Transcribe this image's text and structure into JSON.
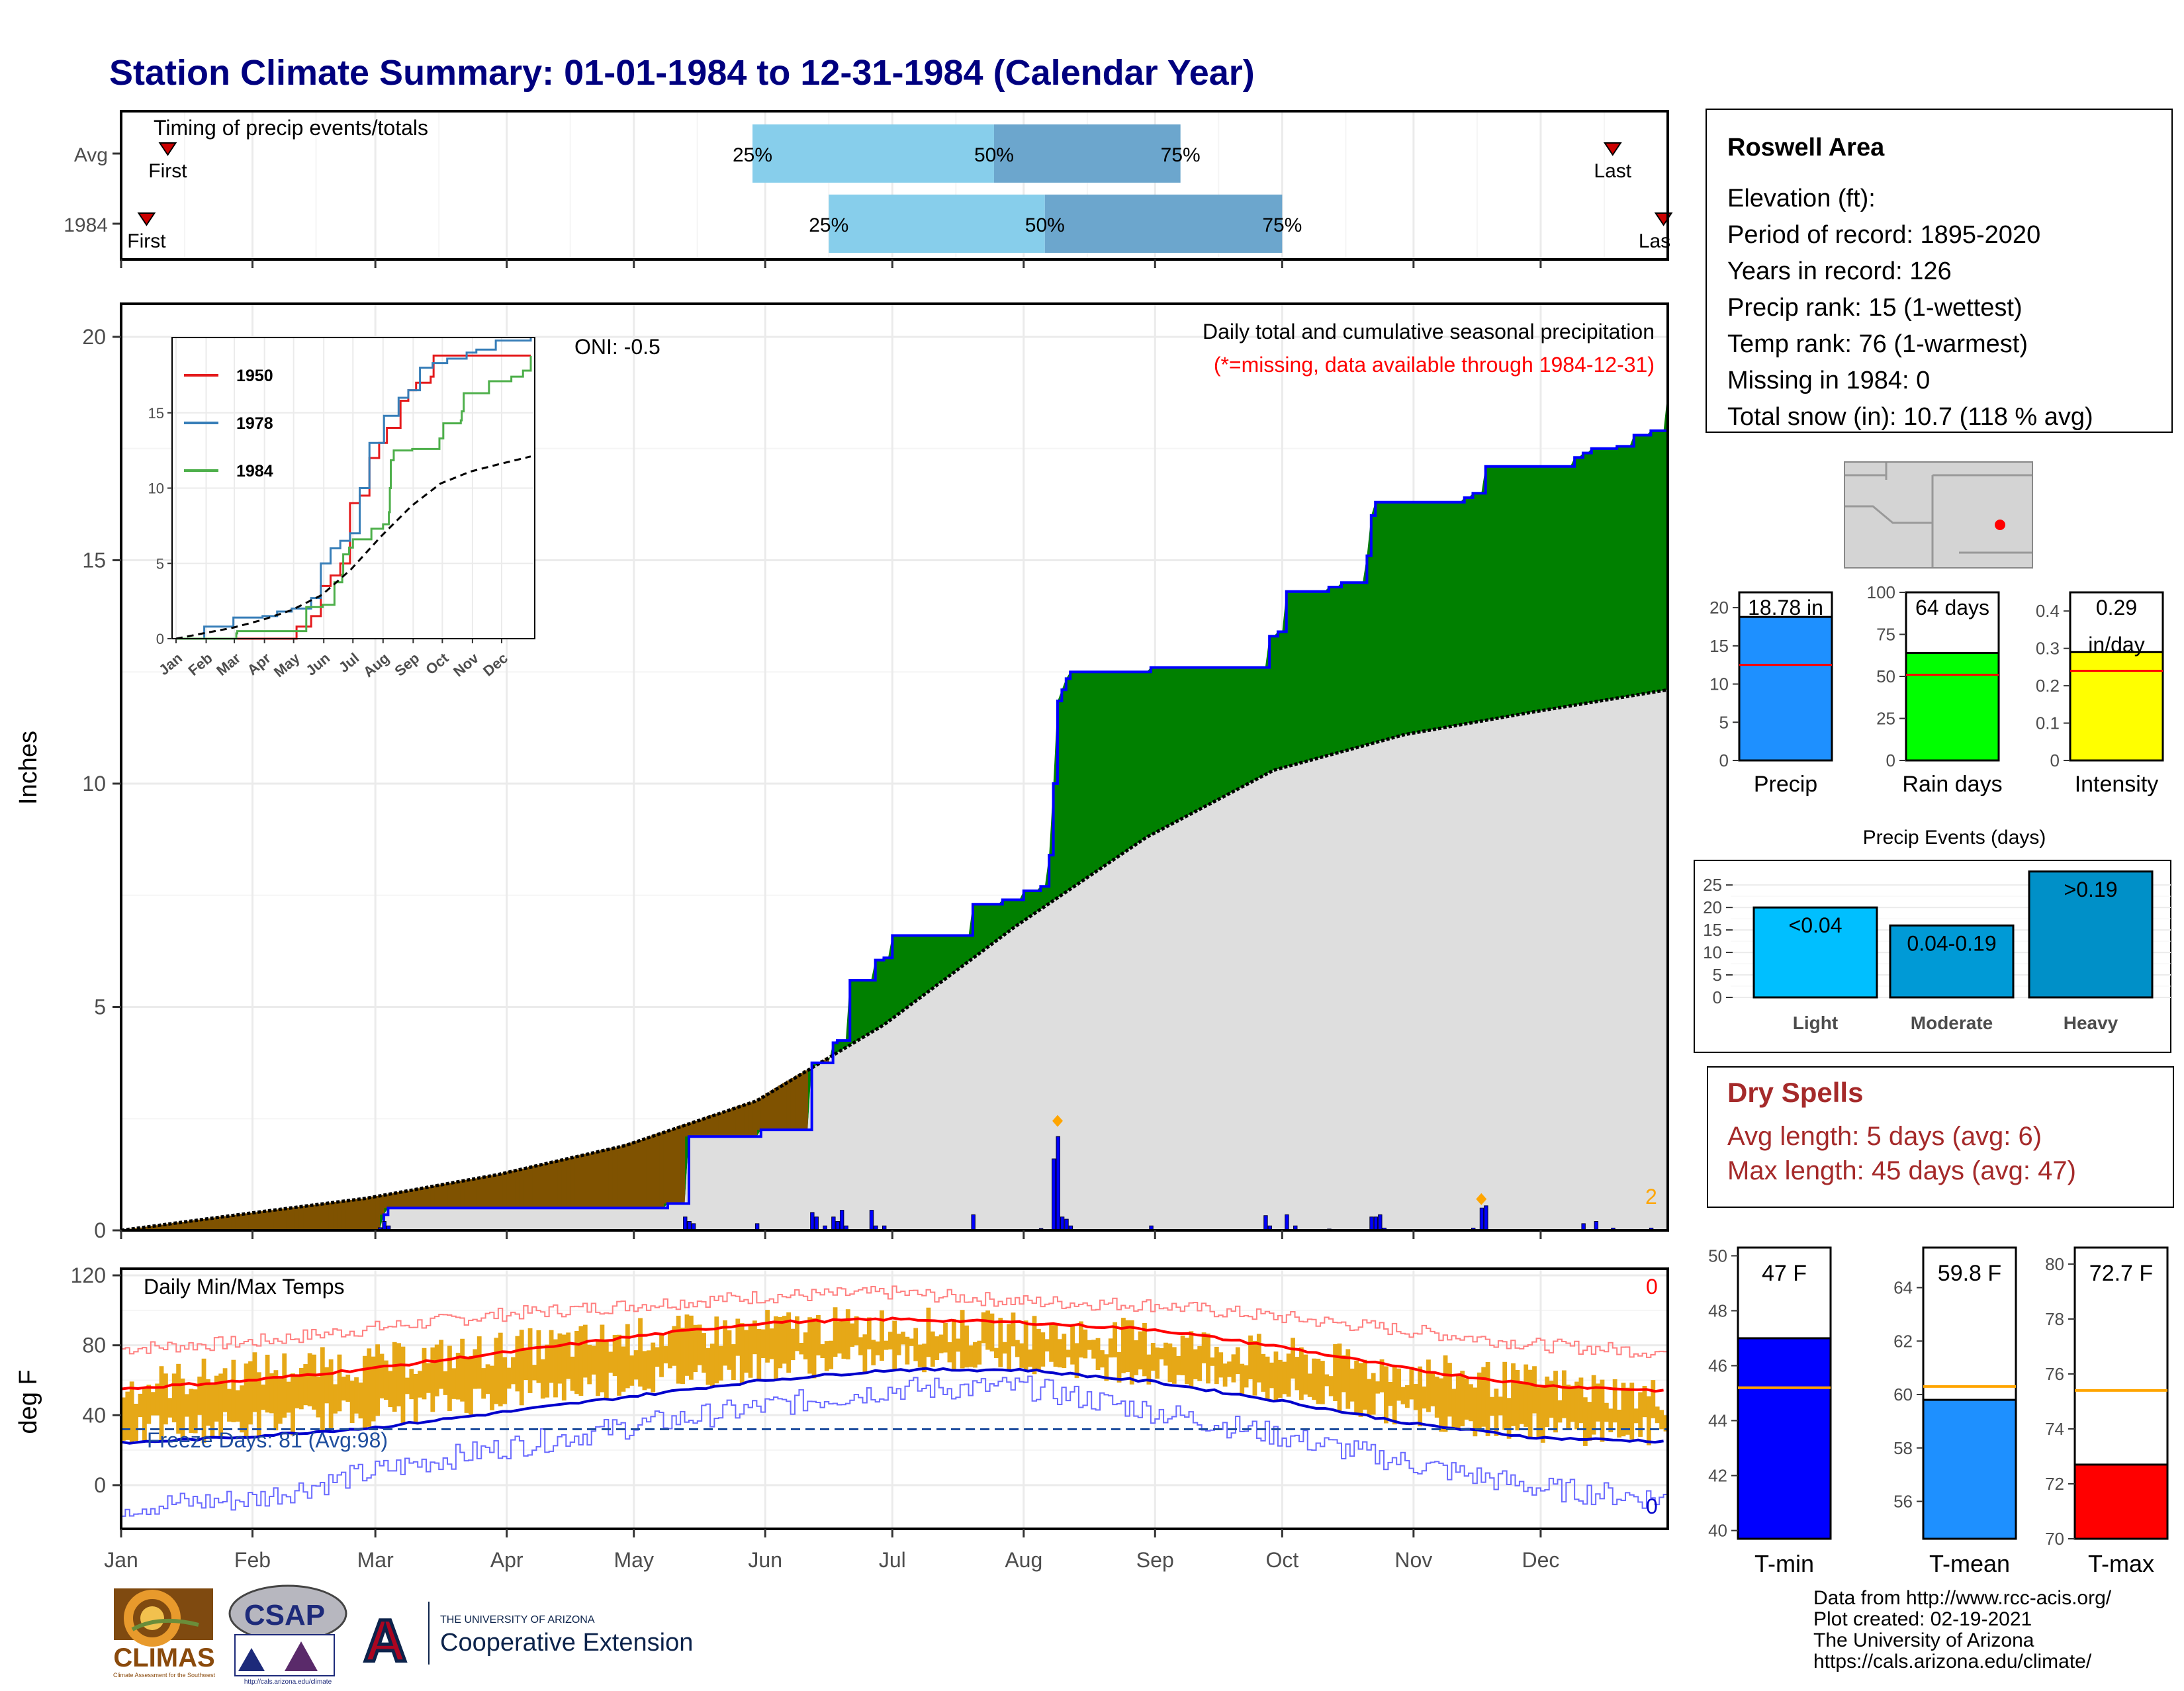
{
  "page": {
    "title": "Station Climate Summary: 01-01-1984 to 12-31-1984 (Calendar Year)",
    "credits": [
      "Data from http://www.rcc-acis.org/",
      "Plot created: 02-19-2021",
      "The University of Arizona",
      "https://cals.arizona.edu/climate/"
    ]
  },
  "colors": {
    "title": "#00007f",
    "green": "#008000",
    "brown": "#7f5200",
    "blue": "#0000ff",
    "grey": "#dedede",
    "gold": "#e6a817",
    "red": "#ff0000",
    "dryspell": "#a52a2a"
  },
  "logos": {
    "climas_text": "CLIMAS",
    "climas_sub": "Climate Assessment for the Southwest",
    "csap_text": "CSAP",
    "csap_url": "http://cals.arizona.edu/climate",
    "ua_small": "THE UNIVERSITY OF ARIZONA",
    "ua_large": "Cooperative Extension",
    "ua_letter": "A"
  },
  "timing": {
    "title": "Timing of precip events/totals",
    "rows": [
      {
        "label": "Avg",
        "first_doy": 12,
        "last_doy": 353,
        "q25": 150,
        "q50": 207,
        "q75": 251,
        "first_label": "First",
        "last_label": "Last"
      },
      {
        "label": "1984",
        "first_doy": 7,
        "last_doy": 365,
        "q25": 168,
        "q50": 219,
        "q75": 275,
        "first_label": "First",
        "last_label": "Las"
      }
    ],
    "q_labels": [
      "25%",
      "50%",
      "75%"
    ]
  },
  "months": [
    "Jan",
    "Feb",
    "Mar",
    "Apr",
    "May",
    "Jun",
    "Jul",
    "Aug",
    "Sep",
    "Oct",
    "Nov",
    "Dec"
  ],
  "month_start_doy": [
    1,
    32,
    61,
    92,
    122,
    153,
    183,
    214,
    245,
    275,
    306,
    336
  ],
  "precip": {
    "ylabel": "Inches",
    "ylim": [
      0,
      20
    ],
    "yticks": [
      0,
      5,
      10,
      15,
      20
    ],
    "header1": "Daily total and cumulative seasonal precipitation",
    "header2": "(*=missing, data available through 1984-12-31)",
    "oni": "ONI: -0.5",
    "corner_count": "2",
    "cumulative_1984": [
      [
        1,
        0
      ],
      [
        63,
        0.35
      ],
      [
        64,
        0.5
      ],
      [
        128,
        0.5
      ],
      [
        130,
        0.6
      ],
      [
        133,
        0.6
      ],
      [
        135,
        2.1
      ],
      [
        150,
        2.1
      ],
      [
        152,
        2.25
      ],
      [
        163,
        2.25
      ],
      [
        164,
        3.75
      ],
      [
        168,
        3.75
      ],
      [
        169,
        4.2
      ],
      [
        170,
        4.25
      ],
      [
        172,
        4.25
      ],
      [
        173,
        5.6
      ],
      [
        178,
        5.6
      ],
      [
        179,
        6.05
      ],
      [
        181,
        6.1
      ],
      [
        183,
        6.6
      ],
      [
        200,
        6.6
      ],
      [
        202,
        7.3
      ],
      [
        209,
        7.4
      ],
      [
        214,
        7.6
      ],
      [
        218,
        7.7
      ],
      [
        220,
        8.4
      ],
      [
        221,
        10.0
      ],
      [
        222,
        11.85
      ],
      [
        223,
        12.1
      ],
      [
        224,
        12.35
      ],
      [
        225,
        12.5
      ],
      [
        243,
        12.5
      ],
      [
        244,
        12.6
      ],
      [
        271,
        12.6
      ],
      [
        272,
        13.3
      ],
      [
        274,
        13.4
      ],
      [
        276,
        14.3
      ],
      [
        286,
        14.4
      ],
      [
        289,
        14.5
      ],
      [
        294,
        14.5
      ],
      [
        295,
        15.1
      ],
      [
        296,
        16.0
      ],
      [
        297,
        16.3
      ],
      [
        316,
        16.3
      ],
      [
        318,
        16.4
      ],
      [
        320,
        16.5
      ],
      [
        322,
        16.5
      ],
      [
        323,
        17.1
      ],
      [
        344,
        17.3
      ],
      [
        346,
        17.4
      ],
      [
        348,
        17.5
      ],
      [
        354,
        17.55
      ],
      [
        358,
        17.8
      ],
      [
        362,
        17.9
      ],
      [
        366,
        18.78
      ]
    ],
    "average_cumulative": [
      [
        1,
        0
      ],
      [
        31,
        0.38
      ],
      [
        59,
        0.72
      ],
      [
        90,
        1.25
      ],
      [
        120,
        1.9
      ],
      [
        151,
        2.9
      ],
      [
        181,
        4.6
      ],
      [
        212,
        6.8
      ],
      [
        243,
        8.8
      ],
      [
        273,
        10.3
      ],
      [
        304,
        11.1
      ],
      [
        334,
        11.6
      ],
      [
        366,
        12.1
      ]
    ],
    "daily": [
      [
        62,
        0.06
      ],
      [
        63,
        0.2
      ],
      [
        64,
        0.1
      ],
      [
        134,
        0.3
      ],
      [
        135,
        0.2
      ],
      [
        136,
        0.15
      ],
      [
        151,
        0.15
      ],
      [
        164,
        0.4
      ],
      [
        165,
        0.3
      ],
      [
        167,
        0.1
      ],
      [
        169,
        0.3
      ],
      [
        170,
        0.2
      ],
      [
        171,
        0.45
      ],
      [
        172,
        0.1
      ],
      [
        178,
        0.45
      ],
      [
        179,
        0.1
      ],
      [
        181,
        0.1
      ],
      [
        202,
        0.35
      ],
      [
        218,
        0.04
      ],
      [
        221,
        1.6
      ],
      [
        222,
        2.1
      ],
      [
        223,
        0.3
      ],
      [
        224,
        0.25
      ],
      [
        225,
        0.1
      ],
      [
        244,
        0.1
      ],
      [
        271,
        0.33
      ],
      [
        272,
        0.1
      ],
      [
        276,
        0.35
      ],
      [
        278,
        0.1
      ],
      [
        286,
        0.03
      ],
      [
        296,
        0.3
      ],
      [
        297,
        0.3
      ],
      [
        298,
        0.35
      ],
      [
        299,
        0.05
      ],
      [
        320,
        0.05
      ],
      [
        322,
        0.5
      ],
      [
        323,
        0.55
      ],
      [
        346,
        0.15
      ],
      [
        349,
        0.2
      ],
      [
        353,
        0.05
      ],
      [
        362,
        0.05
      ]
    ],
    "markers": [
      {
        "doy": 222,
        "value": 2.45
      },
      {
        "doy": 322,
        "value": 0.7
      }
    ],
    "inset": {
      "ylim": [
        0,
        20
      ],
      "yticks": [
        0,
        5,
        10,
        15
      ],
      "legend": [
        "1950",
        "1978",
        "1984"
      ],
      "series": [
        {
          "name": "1950",
          "color": "#e41a1c",
          "points": [
            [
              1,
              0
            ],
            [
              120,
              0
            ],
            [
              125,
              0.8
            ],
            [
              140,
              1.5
            ],
            [
              150,
              3.5
            ],
            [
              160,
              4.2
            ],
            [
              170,
              5
            ],
            [
              180,
              9
            ],
            [
              190,
              9.5
            ],
            [
              200,
              12
            ],
            [
              210,
              13
            ],
            [
              218,
              14
            ],
            [
              225,
              14
            ],
            [
              232,
              15.8
            ],
            [
              240,
              16.5
            ],
            [
              248,
              17
            ],
            [
              256,
              17
            ],
            [
              263,
              17.4
            ],
            [
              266,
              18.8
            ],
            [
              300,
              18.8
            ],
            [
              366,
              18.8
            ]
          ]
        },
        {
          "name": "1978",
          "color": "#377eb8",
          "points": [
            [
              1,
              0
            ],
            [
              30,
              0.8
            ],
            [
              60,
              1.4
            ],
            [
              90,
              1.5
            ],
            [
              105,
              1.8
            ],
            [
              120,
              2
            ],
            [
              140,
              2.7
            ],
            [
              150,
              5
            ],
            [
              160,
              6
            ],
            [
              170,
              6.5
            ],
            [
              180,
              7
            ],
            [
              190,
              10
            ],
            [
              200,
              13
            ],
            [
              215,
              14.8
            ],
            [
              222,
              14.8
            ],
            [
              230,
              16
            ],
            [
              240,
              16.5
            ],
            [
              252,
              18
            ],
            [
              265,
              18.3
            ],
            [
              280,
              18.6
            ],
            [
              300,
              19
            ],
            [
              310,
              19.2
            ],
            [
              330,
              19.8
            ],
            [
              366,
              20
            ]
          ]
        },
        {
          "name": "1984",
          "color": "#4daf4a",
          "points": [
            [
              1,
              0
            ],
            [
              63,
              0.35
            ],
            [
              64,
              0.5
            ],
            [
              128,
              0.5
            ],
            [
              135,
              2.1
            ],
            [
              150,
              2.1
            ],
            [
              152,
              2.25
            ],
            [
              163,
              2.25
            ],
            [
              164,
              3.75
            ],
            [
              172,
              4.25
            ],
            [
              173,
              5.6
            ],
            [
              179,
              6.05
            ],
            [
              183,
              6.6
            ],
            [
              200,
              6.6
            ],
            [
              202,
              7.3
            ],
            [
              214,
              7.6
            ],
            [
              220,
              8.4
            ],
            [
              221,
              10
            ],
            [
              222,
              11.85
            ],
            [
              225,
              12.5
            ],
            [
              243,
              12.5
            ],
            [
              244,
              12.6
            ],
            [
              271,
              12.6
            ],
            [
              272,
              13.3
            ],
            [
              276,
              14.3
            ],
            [
              294,
              14.5
            ],
            [
              295,
              15.1
            ],
            [
              297,
              16.3
            ],
            [
              316,
              16.3
            ],
            [
              323,
              17.1
            ],
            [
              346,
              17.4
            ],
            [
              358,
              17.8
            ],
            [
              366,
              18.78
            ]
          ]
        }
      ],
      "avg_points": [
        [
          1,
          0
        ],
        [
          31,
          0.38
        ],
        [
          59,
          0.72
        ],
        [
          90,
          1.25
        ],
        [
          120,
          1.9
        ],
        [
          151,
          2.9
        ],
        [
          181,
          4.6
        ],
        [
          212,
          6.8
        ],
        [
          243,
          8.8
        ],
        [
          273,
          10.3
        ],
        [
          304,
          11.1
        ],
        [
          334,
          11.6
        ],
        [
          366,
          12.1
        ]
      ]
    }
  },
  "temps": {
    "ylabel": "deg F",
    "ylim": [
      -25,
      120
    ],
    "yticks": [
      0,
      40,
      80,
      120
    ],
    "title": "Daily Min/Max Temps",
    "freeze_text": "Freeze Days: 81 (Avg:98)",
    "freeze_line": 32,
    "count_top": "0",
    "count_bottom": "0",
    "normal_max": [
      [
        1,
        55
      ],
      [
        32,
        60
      ],
      [
        61,
        67
      ],
      [
        92,
        76
      ],
      [
        122,
        85
      ],
      [
        153,
        93
      ],
      [
        183,
        95
      ],
      [
        214,
        93
      ],
      [
        245,
        89
      ],
      [
        275,
        79
      ],
      [
        306,
        66
      ],
      [
        336,
        57
      ],
      [
        366,
        54
      ]
    ],
    "normal_min": [
      [
        1,
        24
      ],
      [
        32,
        28
      ],
      [
        61,
        33
      ],
      [
        92,
        42
      ],
      [
        122,
        51
      ],
      [
        153,
        60
      ],
      [
        183,
        66
      ],
      [
        214,
        66
      ],
      [
        245,
        59
      ],
      [
        275,
        48
      ],
      [
        306,
        35
      ],
      [
        336,
        27
      ],
      [
        366,
        25
      ]
    ],
    "record_max": [
      [
        1,
        78
      ],
      [
        32,
        82
      ],
      [
        61,
        90
      ],
      [
        92,
        98
      ],
      [
        122,
        103
      ],
      [
        153,
        108
      ],
      [
        183,
        110
      ],
      [
        214,
        105
      ],
      [
        245,
        103
      ],
      [
        275,
        96
      ],
      [
        306,
        88
      ],
      [
        336,
        80
      ],
      [
        366,
        76
      ]
    ],
    "record_min": [
      [
        1,
        -12
      ],
      [
        32,
        -8
      ],
      [
        61,
        8
      ],
      [
        92,
        22
      ],
      [
        122,
        34
      ],
      [
        153,
        45
      ],
      [
        183,
        55
      ],
      [
        214,
        56
      ],
      [
        245,
        42
      ],
      [
        275,
        28
      ],
      [
        306,
        12
      ],
      [
        336,
        -2
      ],
      [
        366,
        -8
      ]
    ],
    "obs_max": [
      [
        1,
        56
      ],
      [
        32,
        66
      ],
      [
        61,
        70
      ],
      [
        92,
        78
      ],
      [
        122,
        85
      ],
      [
        153,
        90
      ],
      [
        183,
        92
      ],
      [
        214,
        88
      ],
      [
        245,
        84
      ],
      [
        275,
        74
      ],
      [
        306,
        65
      ],
      [
        336,
        58
      ],
      [
        366,
        50
      ]
    ],
    "obs_min": [
      [
        1,
        22
      ],
      [
        32,
        27
      ],
      [
        61,
        34
      ],
      [
        92,
        44
      ],
      [
        122,
        52
      ],
      [
        153,
        60
      ],
      [
        183,
        65
      ],
      [
        214,
        65
      ],
      [
        245,
        57
      ],
      [
        275,
        46
      ],
      [
        306,
        33
      ],
      [
        336,
        24
      ],
      [
        366,
        22
      ]
    ]
  },
  "station": {
    "name": "Roswell Area",
    "lines": [
      "Elevation (ft):",
      "Period of record: 1895-2020",
      "Years in record: 126",
      "Precip rank: 15 (1-wettest)",
      "Temp rank: 76 (1-warmest)",
      "Missing in 1984: 0",
      "Total snow (in): 10.7 (118 % avg)"
    ]
  },
  "summary_bars": [
    {
      "label": "Precip",
      "value": 18.78,
      "avg": 12.5,
      "ylim": [
        0,
        22
      ],
      "yticks": [
        0,
        5,
        10,
        15,
        20
      ],
      "color": "#1e90ff",
      "value_text": "18.78 in",
      "value_text2": ""
    },
    {
      "label": "Rain days",
      "value": 64,
      "avg": 51,
      "ylim": [
        0,
        100
      ],
      "yticks": [
        0,
        25,
        50,
        75,
        100
      ],
      "color": "#00ff00",
      "value_text": "64 days",
      "value_text2": ""
    },
    {
      "label": "Intensity",
      "value": 0.29,
      "avg": 0.24,
      "ylim": [
        0,
        0.45
      ],
      "yticks": [
        0.0,
        0.1,
        0.2,
        0.3,
        0.4
      ],
      "color": "#ffff00",
      "value_text": "0.29",
      "value_text2": "in/day"
    }
  ],
  "precip_events": {
    "title": "Precip Events (days)",
    "categories": [
      "Light",
      "Moderate",
      "Heavy"
    ],
    "values": [
      20,
      16,
      28
    ],
    "labels": [
      "<0.04",
      "0.04-0.19",
      ">0.19"
    ],
    "colors": [
      "#00bfff",
      "#009ad6",
      "#0090c8"
    ],
    "ylim": [
      0,
      29
    ],
    "yticks": [
      0,
      5,
      10,
      15,
      20,
      25
    ]
  },
  "dry_spells": {
    "title": "Dry Spells",
    "avg_line": "Avg length: 5 days (avg: 6)",
    "max_line": "Max length: 45 days (avg: 47)"
  },
  "temp_bars": [
    {
      "label": "T-min",
      "value": 47.0,
      "avg": 45.2,
      "ylim": [
        39.7,
        50.3
      ],
      "yticks": [
        40,
        42,
        44,
        46,
        48,
        50
      ],
      "color": "#0000ff",
      "value_text": "47 F"
    },
    {
      "label": "T-mean",
      "value": 59.8,
      "avg": 60.3,
      "ylim": [
        54.6,
        65.5
      ],
      "yticks": [
        56,
        58,
        60,
        62,
        64
      ],
      "color": "#1e90ff",
      "value_text": "59.8 F"
    },
    {
      "label": "T-max",
      "value": 72.7,
      "avg": 75.4,
      "ylim": [
        70.0,
        80.6
      ],
      "yticks": [
        70,
        72,
        74,
        76,
        78,
        80
      ],
      "color": "#ff0000",
      "value_text": "72.7 F"
    }
  ]
}
